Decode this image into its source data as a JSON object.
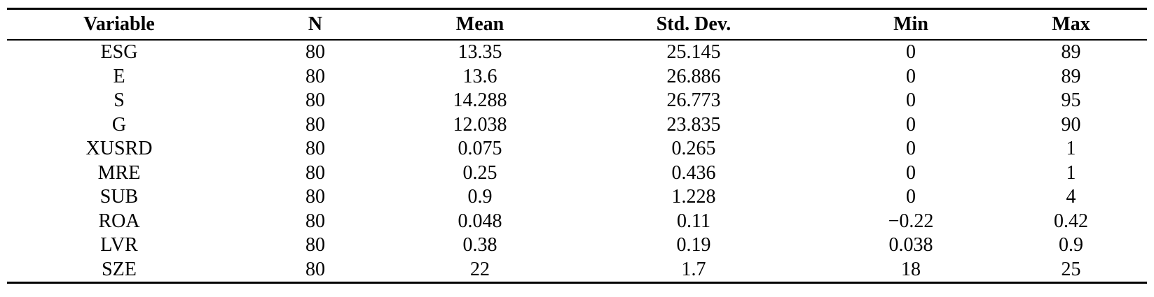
{
  "table": {
    "headers": [
      "Variable",
      "N",
      "Mean",
      "Std. Dev.",
      "Min",
      "Max"
    ],
    "rows": [
      [
        "ESG",
        "80",
        "13.35",
        "25.145",
        "0",
        "89"
      ],
      [
        "E",
        "80",
        "13.6",
        "26.886",
        "0",
        "89"
      ],
      [
        "S",
        "80",
        "14.288",
        "26.773",
        "0",
        "95"
      ],
      [
        "G",
        "80",
        "12.038",
        "23.835",
        "0",
        "90"
      ],
      [
        "XUSRD",
        "80",
        "0.075",
        "0.265",
        "0",
        "1"
      ],
      [
        "MRE",
        "80",
        "0.25",
        "0.436",
        "0",
        "1"
      ],
      [
        "SUB",
        "80",
        "0.9",
        "1.228",
        "0",
        "4"
      ],
      [
        "ROA",
        "80",
        "0.048",
        "0.11",
        "−0.22",
        "0.42"
      ],
      [
        "LVR",
        "80",
        "0.38",
        "0.19",
        "0.038",
        "0.9"
      ],
      [
        "SZE",
        "80",
        "22",
        "1.7",
        "18",
        "25"
      ]
    ]
  }
}
